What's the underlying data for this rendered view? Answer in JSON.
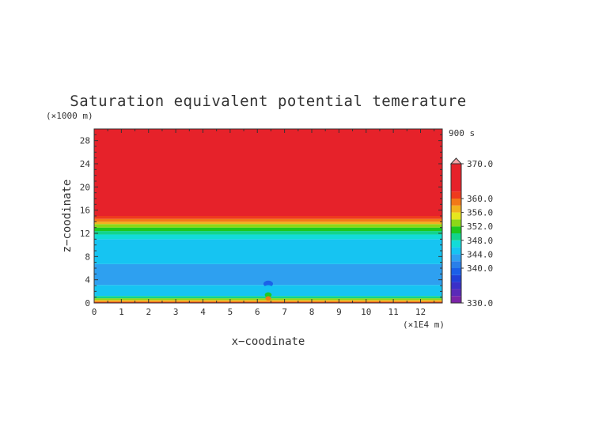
{
  "chart_data": {
    "type": "heatmap",
    "title": "Saturation equivalent potential temerature",
    "xlabel": "x−coodinate",
    "ylabel": "z−coodinate",
    "x_unit": "(×1E4 m)",
    "y_unit": "(×1000 m)",
    "time_label": "900 s",
    "xlim": [
      0,
      12.8
    ],
    "ylim": [
      0,
      30
    ],
    "x_ticks": [
      0,
      1,
      2,
      3,
      4,
      5,
      6,
      7,
      8,
      9,
      10,
      11,
      12
    ],
    "y_ticks": [
      0,
      4,
      8,
      12,
      16,
      20,
      24,
      28
    ],
    "colorbar": {
      "min": 330,
      "max": 370,
      "levels": [
        330,
        332,
        334,
        336,
        338,
        340,
        342,
        344,
        346,
        348,
        350,
        352,
        354,
        356,
        358,
        360,
        362,
        370
      ],
      "colors": [
        "#7b24a8",
        "#5a2ab8",
        "#3a30c8",
        "#2040d8",
        "#1a5fe8",
        "#2a7fe8",
        "#2ea0f0",
        "#16c4f2",
        "#12dcd8",
        "#12d48c",
        "#1ec81e",
        "#8cd818",
        "#e6e61e",
        "#f2b21e",
        "#f27818",
        "#ee3a1e",
        "#e6222a",
        "#f5a3a6"
      ],
      "labels": [
        "330.0",
        "340.0",
        "344.0",
        "348.0",
        "352.0",
        "356.0",
        "360.0",
        "370.0"
      ]
    },
    "layers": [
      {
        "z_bottom": 0.0,
        "z_top": 0.2,
        "value": 361
      },
      {
        "z_bottom": 0.2,
        "z_top": 0.5,
        "value": 357
      },
      {
        "z_bottom": 0.5,
        "z_top": 0.8,
        "value": 353
      },
      {
        "z_bottom": 0.8,
        "z_top": 1.2,
        "value": 349
      },
      {
        "z_bottom": 1.2,
        "z_top": 3.1,
        "value": 344.5
      },
      {
        "z_bottom": 3.1,
        "z_top": 6.7,
        "value": 343
      },
      {
        "z_bottom": 6.7,
        "z_top": 11.0,
        "value": 345
      },
      {
        "z_bottom": 11.0,
        "z_top": 11.8,
        "value": 347
      },
      {
        "z_bottom": 11.8,
        "z_top": 12.4,
        "value": 349
      },
      {
        "z_bottom": 12.4,
        "z_top": 13.0,
        "value": 351
      },
      {
        "z_bottom": 13.0,
        "z_top": 13.6,
        "value": 353
      },
      {
        "z_bottom": 13.6,
        "z_top": 14.0,
        "value": 357
      },
      {
        "z_bottom": 14.0,
        "z_top": 14.5,
        "value": 359
      },
      {
        "z_bottom": 14.5,
        "z_top": 15.0,
        "value": 361
      },
      {
        "z_bottom": 15.0,
        "z_top": 30.0,
        "value": 365
      }
    ],
    "anomalies": [
      {
        "x": 6.4,
        "z": 3.3,
        "value": 338
      },
      {
        "x": 6.4,
        "z": 2.6,
        "value": 345
      },
      {
        "x": 6.4,
        "z": 1.4,
        "value": 351
      },
      {
        "x": 6.4,
        "z": 0.8,
        "value": 359
      }
    ]
  }
}
